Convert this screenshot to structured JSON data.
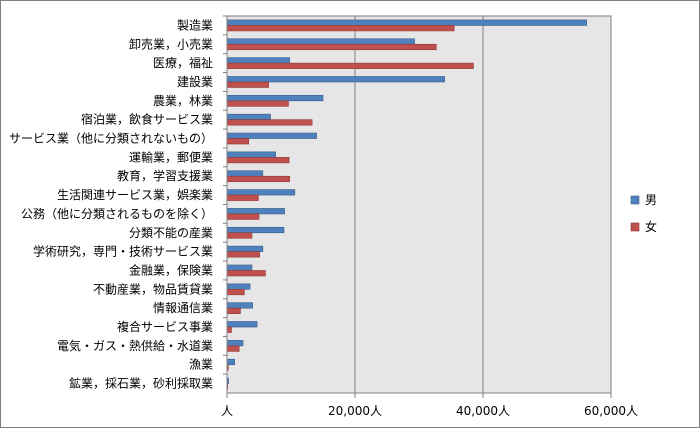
{
  "chart_data": {
    "type": "bar",
    "orientation": "horizontal",
    "categories": [
      "製造業",
      "卸売業，小売業",
      "医療，福祉",
      "建設業",
      "農業，林業",
      "宿泊業，飲食サービス業",
      "サービス業（他に分類されないもの）",
      "運輸業，郵便業",
      "教育，学習支援業",
      "生活関連サービス業，娯楽業",
      "公務（他に分類されるものを除く）",
      "分類不能の産業",
      "学術研究，専門・技術サービス業",
      "金融業，保険業",
      "不動産業，物品賃貸業",
      "情報通信業",
      "複合サービス事業",
      "電気・ガス・熱供給・水道業",
      "漁業",
      "鉱業，採石業，砂利採取業"
    ],
    "series": [
      {
        "name": "男",
        "color": "#4F81BD",
        "values": [
          56200,
          29300,
          9800,
          34000,
          15000,
          6800,
          14000,
          7600,
          5600,
          10600,
          9000,
          8900,
          5600,
          3900,
          3600,
          4000,
          4700,
          2500,
          1200,
          250
        ]
      },
      {
        "name": "女",
        "color": "#C0504D",
        "values": [
          35500,
          32700,
          38500,
          6500,
          9600,
          13300,
          3400,
          9700,
          9800,
          4900,
          5000,
          3900,
          5100,
          6000,
          2700,
          2100,
          700,
          1900,
          200,
          100
        ]
      }
    ],
    "xlim": [
      0,
      60000
    ],
    "xticks": [
      "人",
      "20,000人",
      "40,000人",
      "60,000人"
    ],
    "xtick_values": [
      0,
      20000,
      40000,
      60000
    ],
    "grid": true,
    "legend_position": "right",
    "plot_background": "#E6E6E6",
    "title": "",
    "xlabel": "",
    "ylabel": ""
  }
}
